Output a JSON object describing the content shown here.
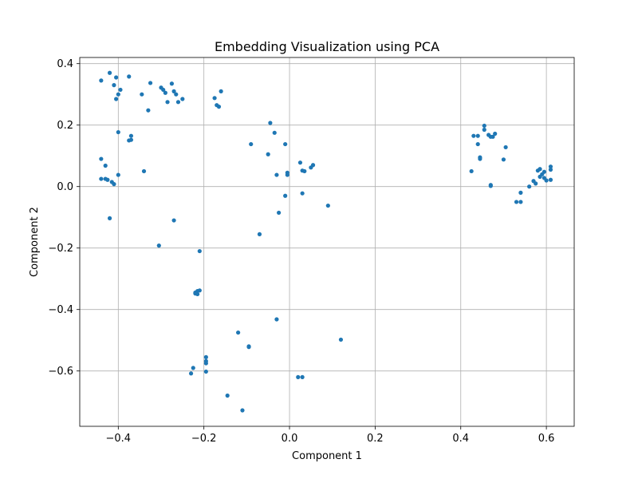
{
  "chart_data": {
    "type": "scatter",
    "title": "Embedding Visualization using PCA",
    "xlabel": "Component 1",
    "ylabel": "Component 2",
    "xlim": [
      -0.49,
      0.665
    ],
    "ylim": [
      -0.78,
      0.42
    ],
    "xticks": [
      -0.4,
      -0.2,
      0.0,
      0.2,
      0.4,
      0.6
    ],
    "yticks": [
      0.4,
      0.2,
      0.0,
      -0.2,
      -0.4,
      -0.6
    ],
    "xtick_labels": [
      "−0.4",
      "−0.2",
      "0.0",
      "0.2",
      "0.4",
      "0.6"
    ],
    "ytick_labels": [
      "0.4",
      "0.2",
      "0.0",
      "−0.2",
      "−0.4",
      "−0.6"
    ],
    "grid": true,
    "point_color": "#1f77b4",
    "points": [
      [
        -0.44,
        0.345
      ],
      [
        -0.42,
        0.37
      ],
      [
        -0.405,
        0.355
      ],
      [
        -0.41,
        0.33
      ],
      [
        -0.395,
        0.315
      ],
      [
        -0.4,
        0.3
      ],
      [
        -0.405,
        0.285
      ],
      [
        -0.375,
        0.358
      ],
      [
        -0.345,
        0.3
      ],
      [
        -0.33,
        0.248
      ],
      [
        -0.325,
        0.337
      ],
      [
        -0.3,
        0.322
      ],
      [
        -0.295,
        0.315
      ],
      [
        -0.29,
        0.305
      ],
      [
        -0.285,
        0.275
      ],
      [
        -0.275,
        0.335
      ],
      [
        -0.27,
        0.31
      ],
      [
        -0.265,
        0.3
      ],
      [
        -0.26,
        0.275
      ],
      [
        -0.25,
        0.285
      ],
      [
        -0.175,
        0.288
      ],
      [
        -0.17,
        0.265
      ],
      [
        -0.165,
        0.26
      ],
      [
        -0.16,
        0.31
      ],
      [
        -0.4,
        0.177
      ],
      [
        -0.37,
        0.165
      ],
      [
        -0.375,
        0.15
      ],
      [
        -0.37,
        0.152
      ],
      [
        -0.34,
        0.05
      ],
      [
        -0.44,
        0.09
      ],
      [
        -0.43,
        0.068
      ],
      [
        -0.4,
        0.038
      ],
      [
        -0.44,
        0.025
      ],
      [
        -0.43,
        0.025
      ],
      [
        -0.425,
        0.022
      ],
      [
        -0.415,
        0.015
      ],
      [
        -0.41,
        0.008
      ],
      [
        -0.42,
        -0.103
      ],
      [
        -0.27,
        -0.11
      ],
      [
        -0.305,
        -0.192
      ],
      [
        -0.21,
        -0.21
      ],
      [
        -0.045,
        0.207
      ],
      [
        -0.035,
        0.175
      ],
      [
        -0.09,
        0.138
      ],
      [
        -0.01,
        0.138
      ],
      [
        -0.05,
        0.105
      ],
      [
        -0.03,
        0.038
      ],
      [
        -0.005,
        0.045
      ],
      [
        -0.005,
        0.038
      ],
      [
        0.025,
        0.078
      ],
      [
        0.03,
        0.052
      ],
      [
        0.035,
        0.05
      ],
      [
        0.055,
        0.07
      ],
      [
        0.05,
        0.062
      ],
      [
        0.03,
        -0.022
      ],
      [
        -0.01,
        -0.03
      ],
      [
        -0.025,
        -0.085
      ],
      [
        -0.07,
        -0.155
      ],
      [
        0.09,
        -0.062
      ],
      [
        -0.22,
        -0.345
      ],
      [
        -0.215,
        -0.34
      ],
      [
        -0.21,
        -0.338
      ],
      [
        -0.215,
        -0.35
      ],
      [
        -0.22,
        -0.348
      ],
      [
        -0.03,
        -0.432
      ],
      [
        -0.12,
        -0.475
      ],
      [
        -0.095,
        -0.522
      ],
      [
        -0.095,
        -0.52
      ],
      [
        0.12,
        -0.498
      ],
      [
        -0.195,
        -0.555
      ],
      [
        -0.195,
        -0.568
      ],
      [
        -0.195,
        -0.575
      ],
      [
        -0.225,
        -0.59
      ],
      [
        -0.23,
        -0.608
      ],
      [
        -0.195,
        -0.602
      ],
      [
        -0.145,
        -0.68
      ],
      [
        -0.11,
        -0.728
      ],
      [
        0.02,
        -0.62
      ],
      [
        0.03,
        -0.62
      ],
      [
        0.43,
        0.165
      ],
      [
        0.44,
        0.165
      ],
      [
        0.455,
        0.198
      ],
      [
        0.455,
        0.185
      ],
      [
        0.465,
        0.168
      ],
      [
        0.47,
        0.162
      ],
      [
        0.48,
        0.172
      ],
      [
        0.475,
        0.162
      ],
      [
        0.44,
        0.138
      ],
      [
        0.505,
        0.128
      ],
      [
        0.445,
        0.095
      ],
      [
        0.445,
        0.09
      ],
      [
        0.5,
        0.088
      ],
      [
        0.425,
        0.05
      ],
      [
        0.47,
        0.005
      ],
      [
        0.47,
        0.002
      ],
      [
        0.585,
        0.057
      ],
      [
        0.58,
        0.052
      ],
      [
        0.595,
        0.048
      ],
      [
        0.61,
        0.065
      ],
      [
        0.61,
        0.055
      ],
      [
        0.59,
        0.04
      ],
      [
        0.585,
        0.032
      ],
      [
        0.595,
        0.028
      ],
      [
        0.6,
        0.02
      ],
      [
        0.61,
        0.022
      ],
      [
        0.57,
        0.018
      ],
      [
        0.575,
        0.01
      ],
      [
        0.56,
        0.0
      ],
      [
        0.54,
        -0.02
      ],
      [
        0.53,
        -0.05
      ],
      [
        0.54,
        -0.05
      ]
    ]
  }
}
